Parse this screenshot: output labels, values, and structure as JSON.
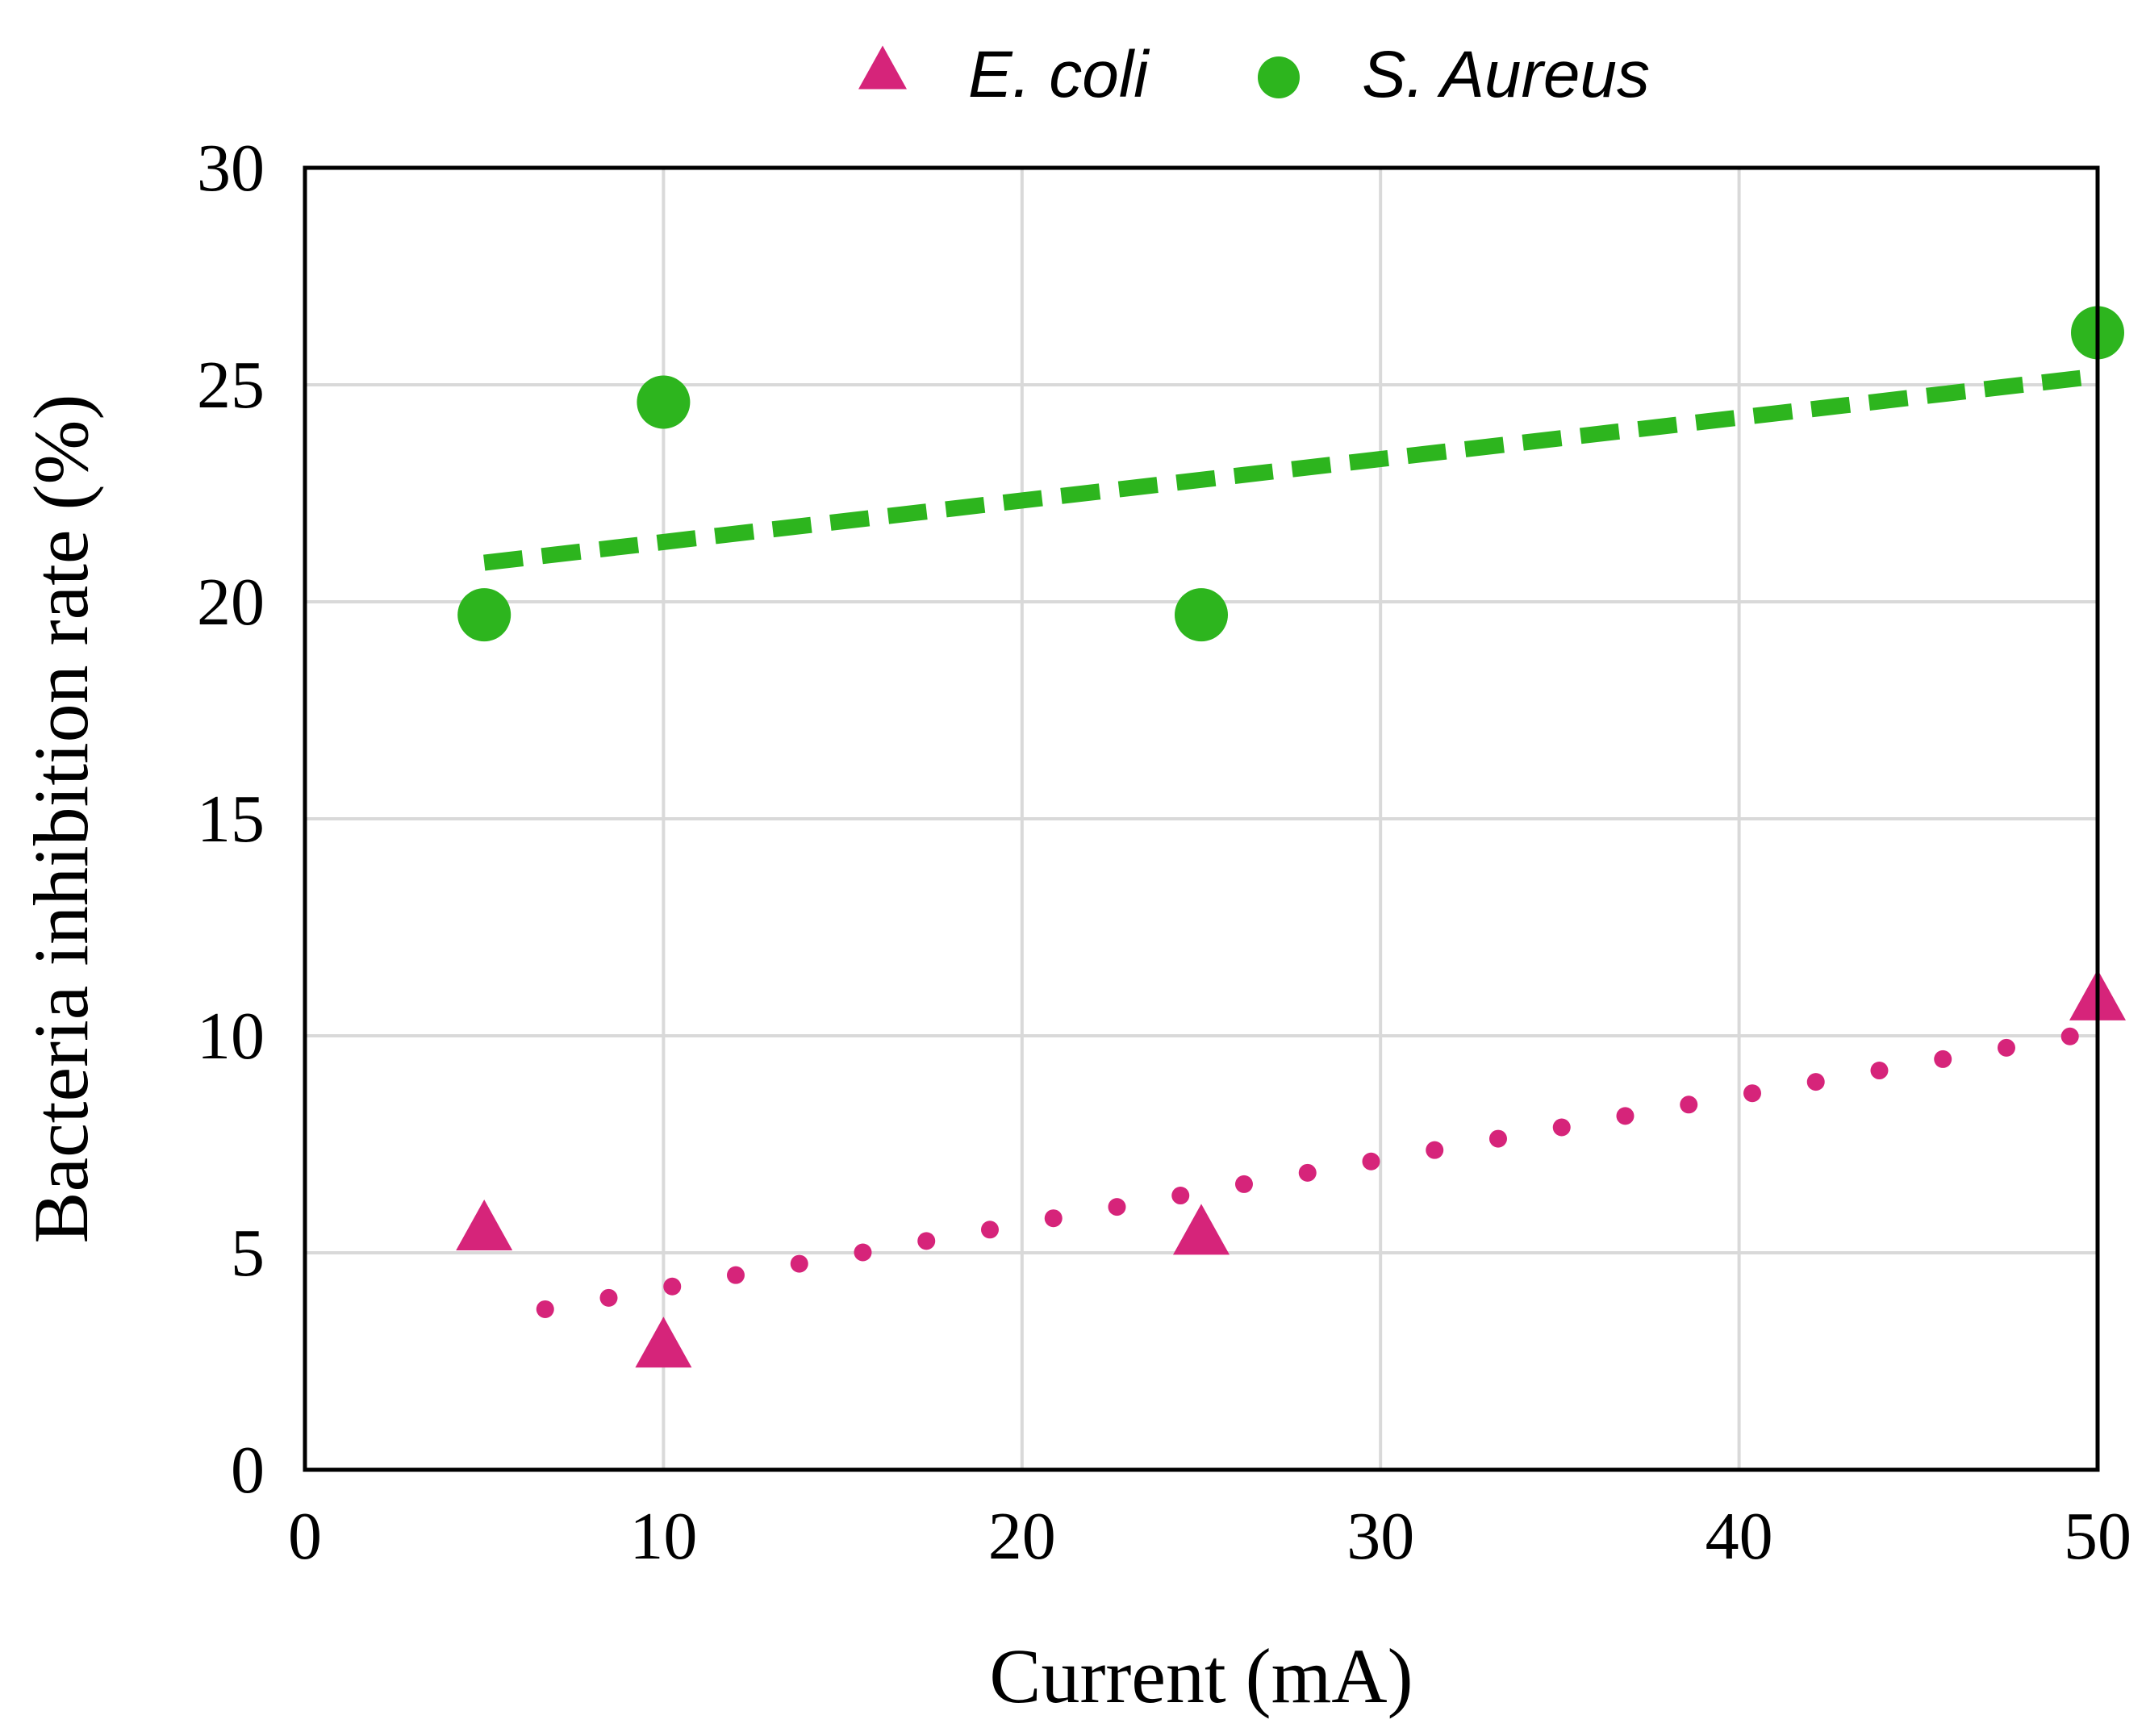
{
  "chart_data": {
    "type": "scatter",
    "title": "",
    "xlabel": "Current (mA)",
    "ylabel": "Bacteria inhibition rate (%)",
    "xlim": [
      0,
      50
    ],
    "ylim": [
      0,
      30
    ],
    "x_ticks": [
      0,
      10,
      20,
      30,
      40,
      50
    ],
    "y_ticks": [
      0,
      5,
      10,
      15,
      20,
      25,
      30
    ],
    "grid": true,
    "legend_position": "top-center",
    "series": [
      {
        "name": "E. coli",
        "marker": "triangle",
        "color": "#d6247a",
        "points": [
          {
            "x": 5,
            "y": 5.5
          },
          {
            "x": 10,
            "y": 2.8
          },
          {
            "x": 25,
            "y": 5.4
          },
          {
            "x": 50,
            "y": 10.8
          }
        ],
        "trendline": {
          "style": "dotted",
          "x_start": 6.7,
          "y_start": 3.7,
          "x_end": 50,
          "y_end": 10.1
        }
      },
      {
        "name": "S. Aureus",
        "marker": "circle",
        "color": "#2db51e",
        "points": [
          {
            "x": 5,
            "y": 19.7
          },
          {
            "x": 10,
            "y": 24.6
          },
          {
            "x": 25,
            "y": 19.7
          },
          {
            "x": 50,
            "y": 26.2
          }
        ],
        "trendline": {
          "style": "dashed",
          "x_start": 5,
          "y_start": 20.9,
          "x_end": 50,
          "y_end": 25.2
        }
      }
    ]
  }
}
